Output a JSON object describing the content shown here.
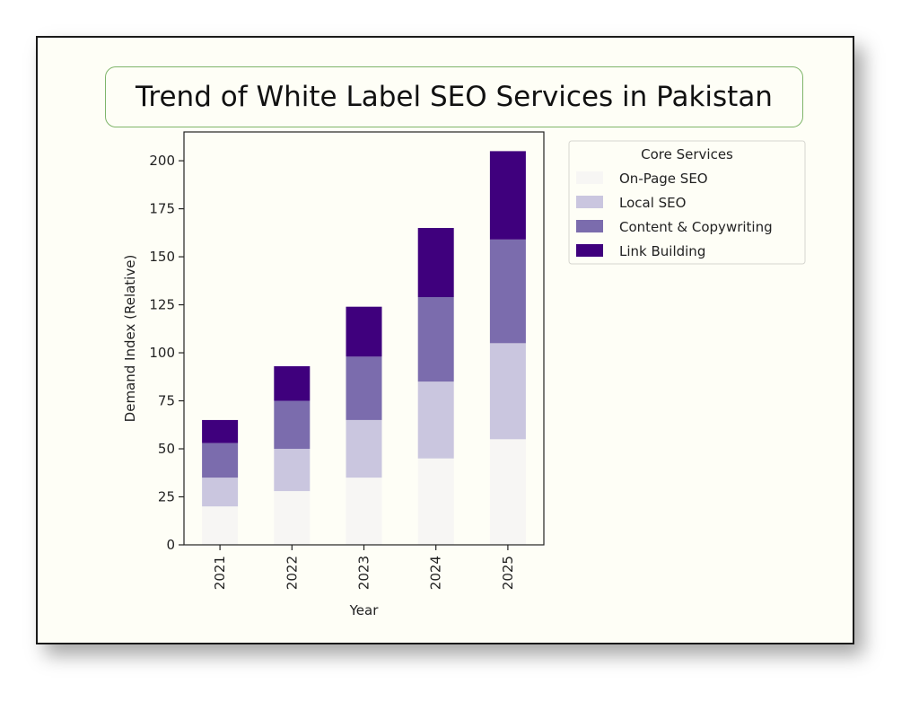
{
  "colors": {
    "frame_bg": "#fefef6",
    "title_border": "#7fb56a"
  },
  "chart_data": {
    "type": "bar",
    "stacked": true,
    "title": "Trend of White Label SEO Services in Pakistan",
    "xlabel": "Year",
    "ylabel": "Demand Index (Relative)",
    "ylim": [
      0,
      215
    ],
    "yticks": [
      0,
      25,
      50,
      75,
      100,
      125,
      150,
      175,
      200
    ],
    "categories": [
      "2021",
      "2022",
      "2023",
      "2024",
      "2025"
    ],
    "legend": {
      "title": "Core Services",
      "position": "outside-right-top"
    },
    "grid": false,
    "series": [
      {
        "name": "On-Page SEO",
        "color": "#f7f6f4",
        "values": [
          20,
          28,
          35,
          45,
          55
        ]
      },
      {
        "name": "Local SEO",
        "color": "#cac6df",
        "values": [
          15,
          22,
          30,
          40,
          50
        ]
      },
      {
        "name": "Content & Copywriting",
        "color": "#7b6cad",
        "values": [
          18,
          25,
          33,
          44,
          54
        ]
      },
      {
        "name": "Link Building",
        "color": "#3f007d",
        "values": [
          12,
          18,
          26,
          36,
          46
        ]
      }
    ]
  }
}
